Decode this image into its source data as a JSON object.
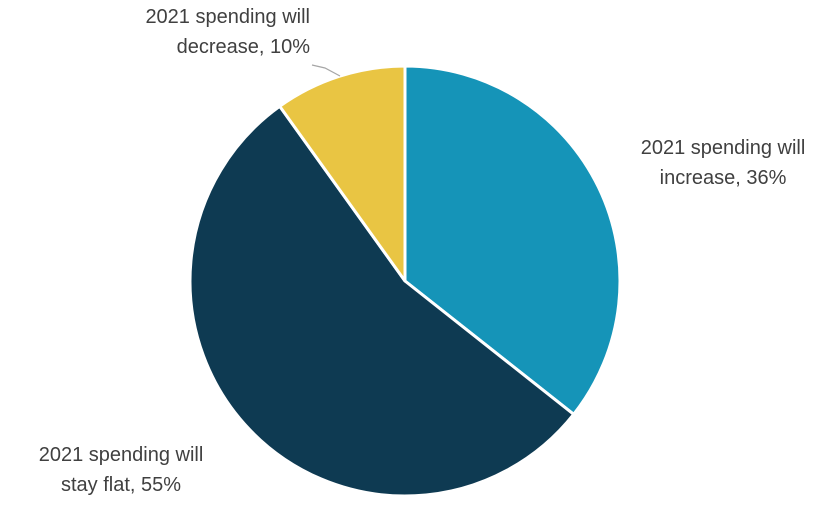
{
  "chart_data": {
    "type": "pie",
    "slices": [
      {
        "label": "2021 spending will increase, 36%",
        "label_lines": [
          "2021 spending will",
          "increase, 36%"
        ],
        "value": 36,
        "color": "#1594B8"
      },
      {
        "label": "2021 spending will stay flat, 55%",
        "label_lines": [
          "2021 spending will",
          "stay flat, 55%"
        ],
        "value": 55,
        "color": "#0E3A52"
      },
      {
        "label": "2021 spending will decrease, 10%",
        "label_lines": [
          "2021 spending will",
          "decrease, 10%"
        ],
        "value": 10,
        "color": "#E9C543"
      }
    ],
    "start_angle": "12 o'clock",
    "direction": "clockwise",
    "legend": "none",
    "slice_border_color": "#ffffff",
    "leader_line_color": "#a6a6a6"
  }
}
